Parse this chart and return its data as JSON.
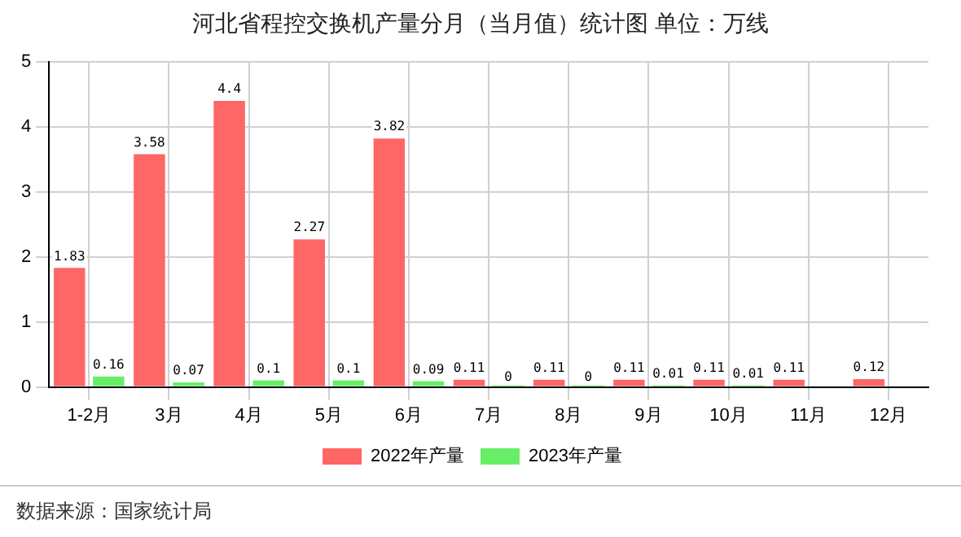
{
  "chart_data": {
    "type": "bar",
    "title": "河北省程控交换机产量分月（当月值）统计图 单位：万线",
    "categories": [
      "1-2月",
      "3月",
      "4月",
      "5月",
      "6月",
      "7月",
      "8月",
      "9月",
      "10月",
      "11月",
      "12月"
    ],
    "series": [
      {
        "name": "2022年产量",
        "color": "#ff6666",
        "values": [
          1.83,
          3.58,
          4.4,
          2.27,
          3.82,
          0.11,
          0.11,
          0.11,
          0.11,
          0.11,
          0.12
        ]
      },
      {
        "name": "2023年产量",
        "color": "#66ee66",
        "values": [
          0.16,
          0.07,
          0.1,
          0.1,
          0.09,
          0,
          0,
          0.01,
          0.01,
          null,
          null
        ]
      }
    ],
    "ylim": [
      0,
      5
    ],
    "yticks": [
      0,
      1,
      2,
      3,
      4,
      5
    ],
    "grid": true,
    "legend": "bottom",
    "data_labels": true,
    "annotations": [
      "数据来源：国家统计局"
    ]
  }
}
